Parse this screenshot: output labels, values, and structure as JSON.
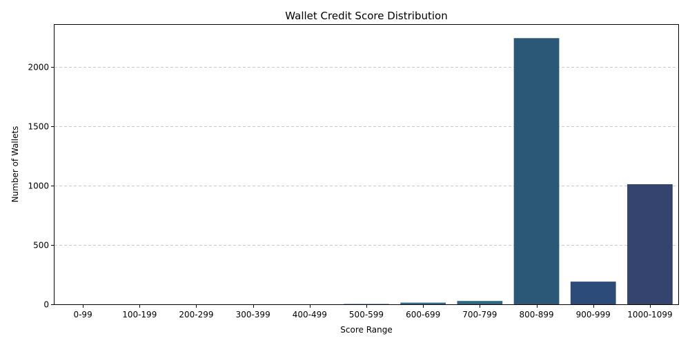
{
  "chart_data": {
    "type": "bar",
    "title": "Wallet Credit Score Distribution",
    "xlabel": "Score Range",
    "ylabel": "Number of Wallets",
    "categories": [
      "0-99",
      "100-199",
      "200-299",
      "300-399",
      "400-499",
      "500-599",
      "600-699",
      "700-799",
      "800-899",
      "900-999",
      "1000-1099"
    ],
    "values": [
      0,
      0,
      0,
      0,
      0,
      3,
      14,
      28,
      2241,
      191,
      1011
    ],
    "colors": [
      "#44b95c",
      "#33ad76",
      "#23a083",
      "#1f9188",
      "#22818c",
      "#26728f",
      "#2a6f8e",
      "#2c6880",
      "#2a5876",
      "#2d4b79",
      "#35436f"
    ],
    "ylim": [
      0,
      2353
    ],
    "yticks": [
      0,
      500,
      1000,
      1500,
      2000
    ],
    "grid": "y",
    "legend": "none"
  }
}
